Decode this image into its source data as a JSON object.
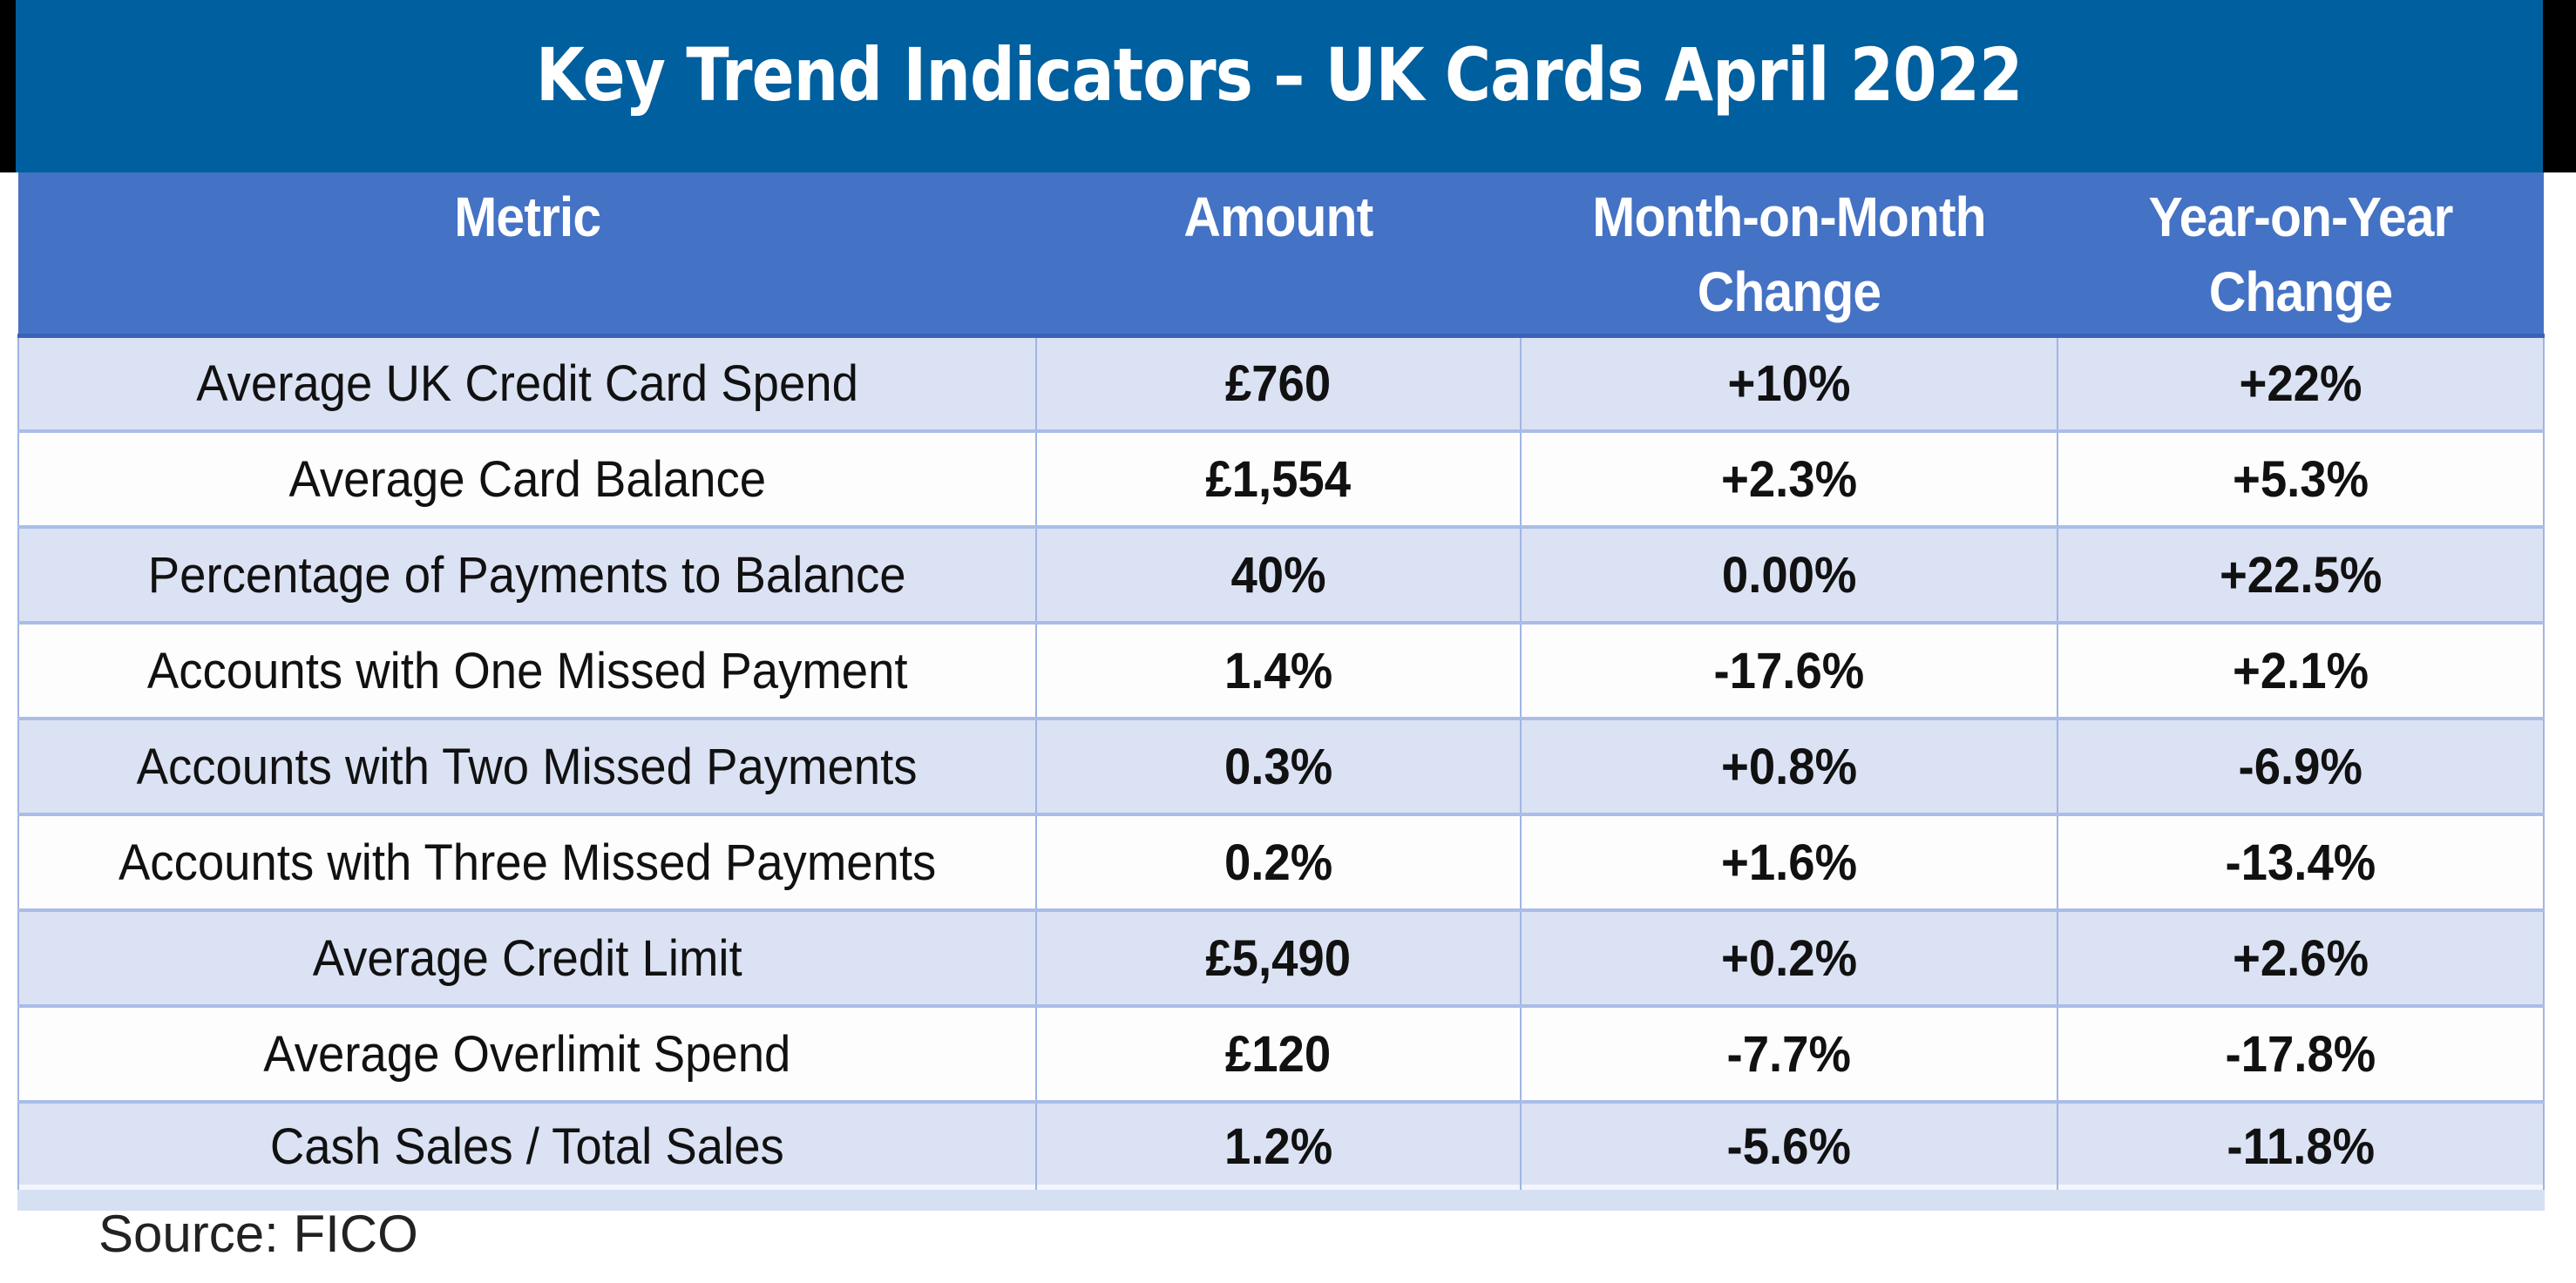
{
  "banner": {
    "title": "Key Trend Indicators – UK Cards April 2022"
  },
  "table": {
    "headers": [
      "Metric",
      "Amount",
      "Month-on-Month Change",
      "Year-on-Year Change"
    ],
    "rows": [
      {
        "metric": "Average UK Credit Card Spend",
        "amount": "£760",
        "mom": "+10%",
        "yoy": "+22%"
      },
      {
        "metric": "Average Card Balance",
        "amount": "£1,554",
        "mom": "+2.3%",
        "yoy": "+5.3%"
      },
      {
        "metric": "Percentage of Payments to Balance",
        "amount": "40%",
        "mom": "0.00%",
        "yoy": "+22.5%"
      },
      {
        "metric": "Accounts with One Missed Payment",
        "amount": "1.4%",
        "mom": "-17.6%",
        "yoy": "+2.1%"
      },
      {
        "metric": "Accounts with Two Missed Payments",
        "amount": "0.3%",
        "mom": "+0.8%",
        "yoy": "-6.9%"
      },
      {
        "metric": "Accounts with Three Missed Payments",
        "amount": "0.2%",
        "mom": "+1.6%",
        "yoy": "-13.4%"
      },
      {
        "metric": "Average Credit Limit",
        "amount": "£5,490",
        "mom": "+0.2%",
        "yoy": "+2.6%"
      },
      {
        "metric": "Average Overlimit Spend",
        "amount": "£120",
        "mom": "-7.7%",
        "yoy": "-17.8%"
      },
      {
        "metric": "Cash Sales / Total Sales",
        "amount": "1.2%",
        "mom": "-5.6%",
        "yoy": "-11.8%"
      }
    ]
  },
  "footer": {
    "source": "Source: FICO"
  },
  "colors": {
    "banner": "#005f9e",
    "header": "#4472c4",
    "row_shaded": "#dbe2f3",
    "row_plain": "#fdfdfd"
  },
  "chart_data": {
    "type": "table",
    "title": "Key Trend Indicators – UK Cards April 2022",
    "columns": [
      "Metric",
      "Amount",
      "Month-on-Month Change",
      "Year-on-Year Change"
    ],
    "rows": [
      [
        "Average UK Credit Card Spend",
        "£760",
        "+10%",
        "+22%"
      ],
      [
        "Average Card Balance",
        "£1,554",
        "+2.3%",
        "+5.3%"
      ],
      [
        "Percentage of Payments to Balance",
        "40%",
        "0.00%",
        "+22.5%"
      ],
      [
        "Accounts with One Missed Payment",
        "1.4%",
        "-17.6%",
        "+2.1%"
      ],
      [
        "Accounts with Two Missed Payments",
        "0.3%",
        "+0.8%",
        "-6.9%"
      ],
      [
        "Accounts with Three Missed Payments",
        "0.2%",
        "+1.6%",
        "-13.4%"
      ],
      [
        "Average Credit Limit",
        "£5,490",
        "+0.2%",
        "+2.6%"
      ],
      [
        "Average Overlimit Spend",
        "£120",
        "-7.7%",
        "-17.8%"
      ],
      [
        "Cash Sales / Total Sales",
        "1.2%",
        "-5.6%",
        "-11.8%"
      ]
    ],
    "source": "Source: FICO"
  }
}
